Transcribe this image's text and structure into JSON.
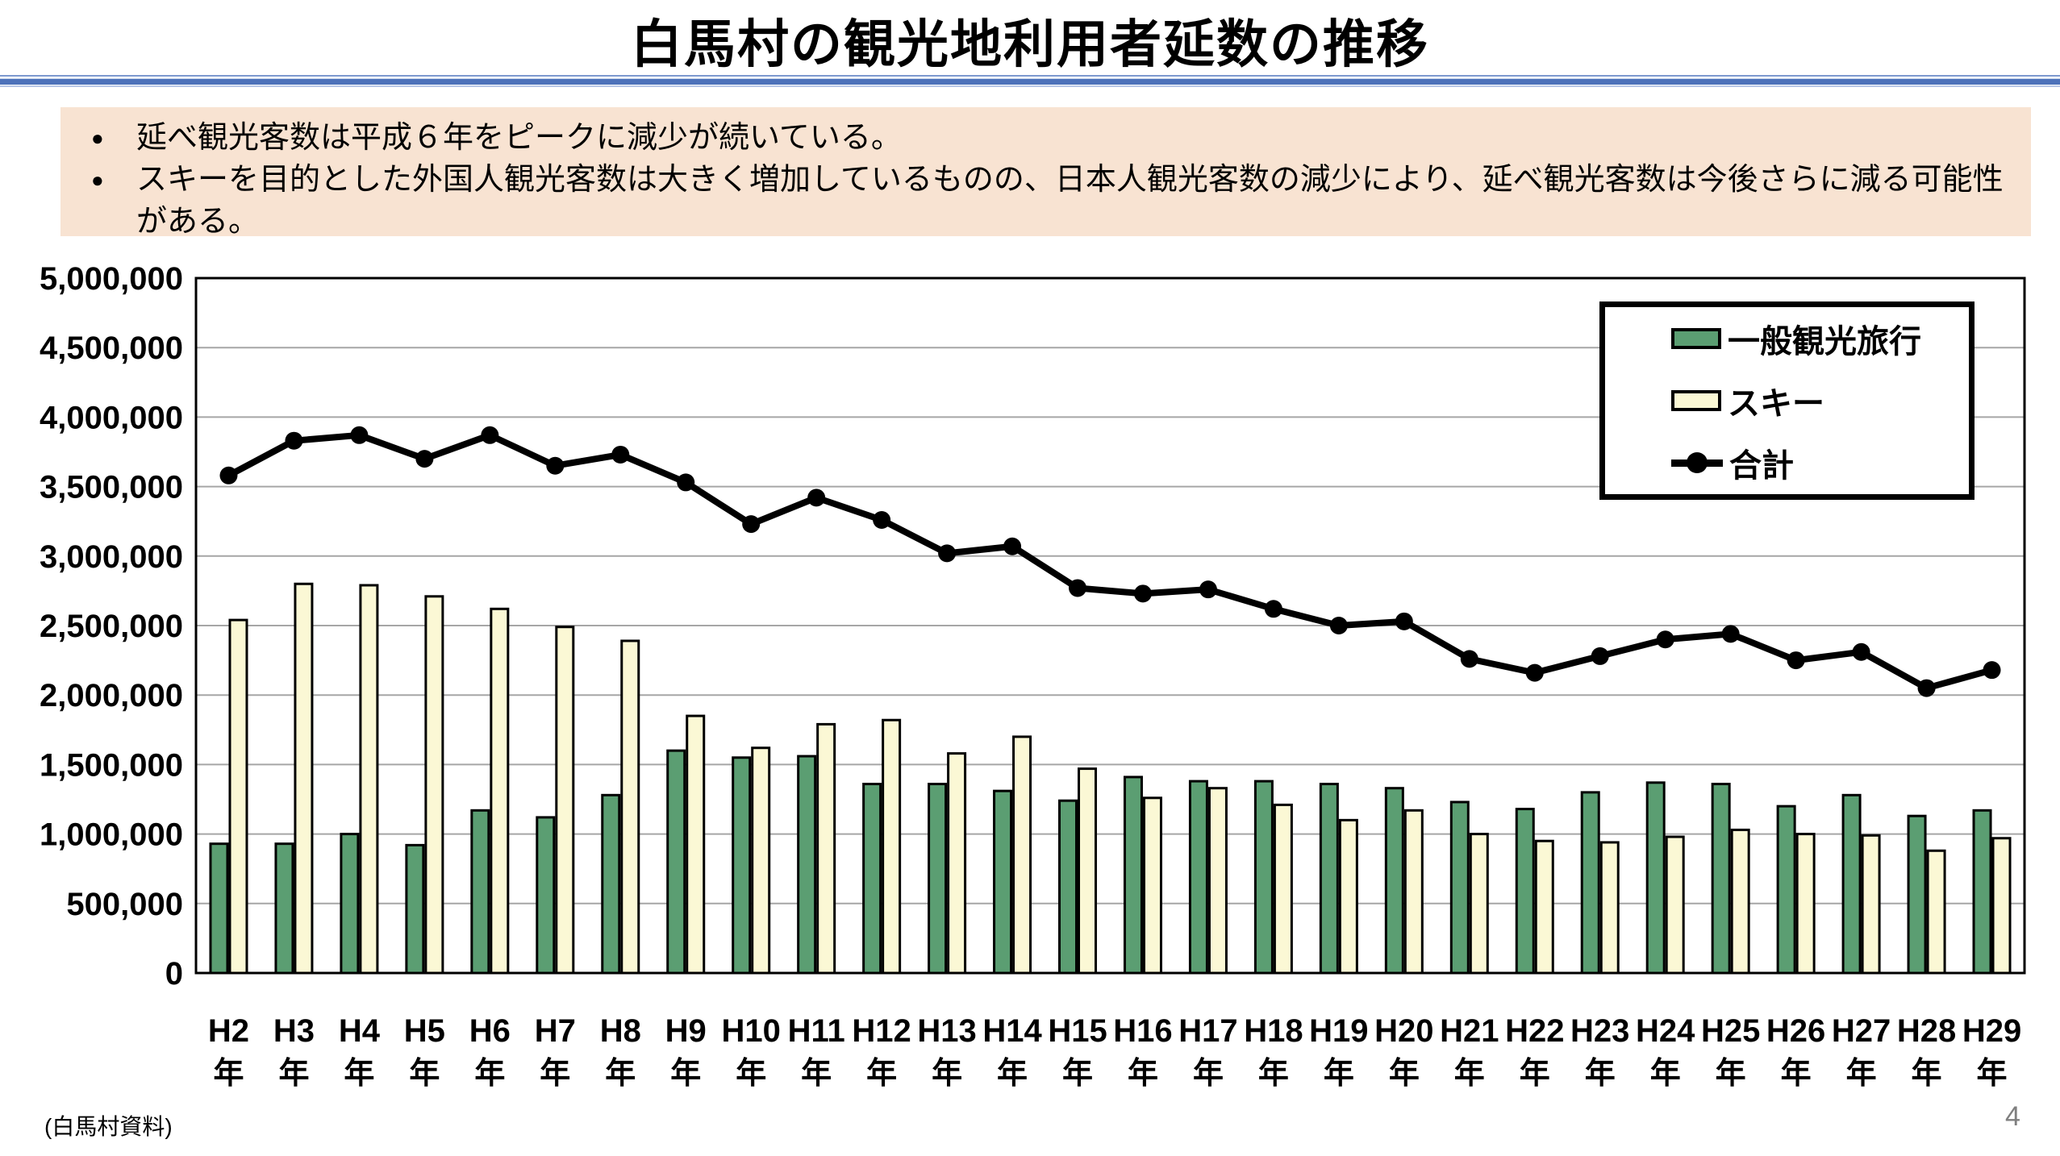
{
  "page": {
    "title": "白馬村の観光地利用者延数の推移",
    "source_note": "(白馬村資料)",
    "page_number": "4"
  },
  "callout": {
    "lines": [
      {
        "marker": "●",
        "text": "延べ観光客数は平成６年をピークに減少が続いている。"
      },
      {
        "marker": "●",
        "text": "スキーを目的とした外国人観光客数は大きく増加しているものの、日本人観光客数の減少により、延べ観光客数は今後さらに減る可能性"
      },
      {
        "marker": "",
        "text": "がある。"
      }
    ]
  },
  "chart_data": {
    "type": "combo-bar-line",
    "categories": [
      "H2",
      "H3",
      "H4",
      "H5",
      "H6",
      "H7",
      "H8",
      "H9",
      "H10",
      "H11",
      "H12",
      "H13",
      "H14",
      "H15",
      "H16",
      "H17",
      "H18",
      "H19",
      "H20",
      "H21",
      "H22",
      "H23",
      "H24",
      "H25",
      "H26",
      "H27",
      "H28",
      "H29"
    ],
    "category_suffix": "年",
    "y_axis": {
      "min": 0,
      "max": 5000000,
      "tick": 500000
    },
    "gridline_color": "#a6a6a6",
    "legend_position": "top-right",
    "series": [
      {
        "name": "一般観光旅行",
        "type": "bar",
        "color": "#5b9e72",
        "values": [
          930000,
          930000,
          1000000,
          920000,
          1170000,
          1120000,
          1280000,
          1600000,
          1550000,
          1560000,
          1360000,
          1360000,
          1310000,
          1240000,
          1410000,
          1380000,
          1380000,
          1360000,
          1330000,
          1230000,
          1180000,
          1300000,
          1370000,
          1360000,
          1200000,
          1280000,
          1130000,
          1170000
        ]
      },
      {
        "name": "スキー",
        "type": "bar",
        "color": "#fbf8d5",
        "values": [
          2540000,
          2800000,
          2790000,
          2710000,
          2620000,
          2490000,
          2390000,
          1850000,
          1620000,
          1790000,
          1820000,
          1580000,
          1700000,
          1470000,
          1260000,
          1330000,
          1210000,
          1100000,
          1170000,
          1000000,
          950000,
          940000,
          980000,
          1030000,
          1000000,
          990000,
          880000,
          970000
        ]
      },
      {
        "name": "合計",
        "type": "line",
        "color": "#000000",
        "values": [
          3580000,
          3830000,
          3870000,
          3700000,
          3870000,
          3650000,
          3730000,
          3530000,
          3230000,
          3420000,
          3260000,
          3020000,
          3070000,
          2770000,
          2730000,
          2760000,
          2620000,
          2500000,
          2530000,
          2260000,
          2160000,
          2280000,
          2400000,
          2440000,
          2250000,
          2310000,
          2050000,
          2180000
        ]
      }
    ]
  }
}
